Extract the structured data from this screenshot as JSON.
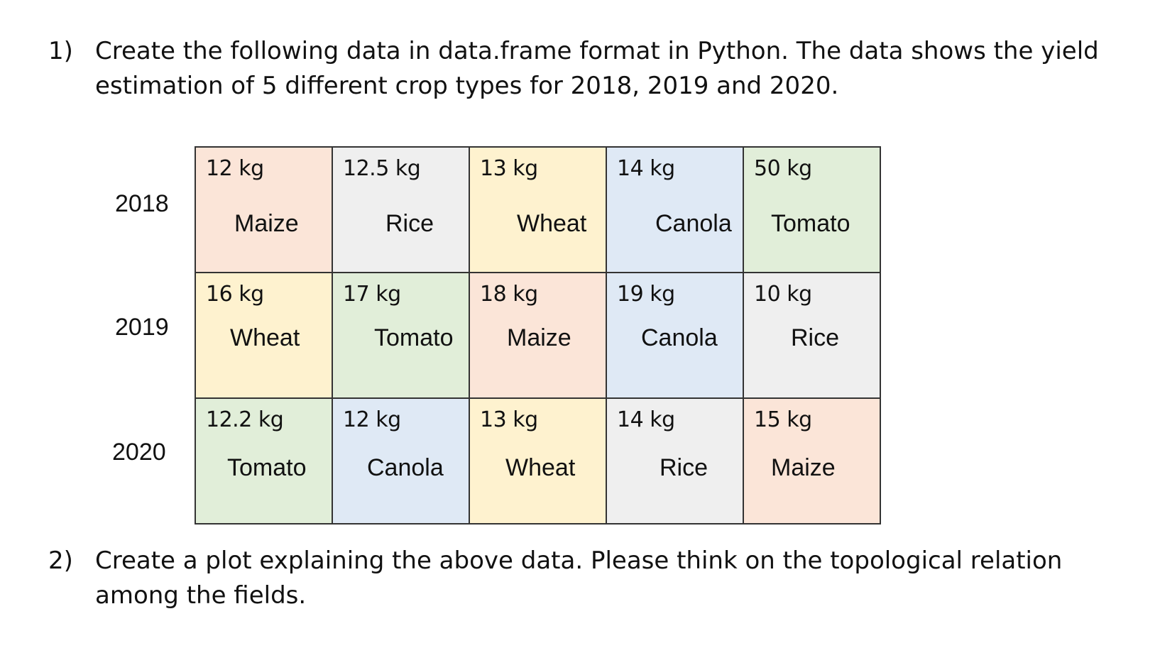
{
  "question1": {
    "number": "1)",
    "text": "Create the following data in data.frame format in Python. The data shows the yield estimation of 5 different crop types for 2018, 2019 and 2020."
  },
  "question2": {
    "number": "2)",
    "text": "Create a plot explaining the above data. Please think on the topological relation among the fields."
  },
  "years": [
    "2018",
    "2019",
    "2020"
  ],
  "grid": [
    [
      {
        "weight": "12 kg",
        "crop": "Maize"
      },
      {
        "weight": "12.5 kg",
        "crop": "Rice"
      },
      {
        "weight": "13 kg",
        "crop": "Wheat"
      },
      {
        "weight": "14 kg",
        "crop": "Canola"
      },
      {
        "weight": "50 kg",
        "crop": "Tomato"
      }
    ],
    [
      {
        "weight": "16 kg",
        "crop": "Wheat"
      },
      {
        "weight": "17 kg",
        "crop": "Tomato"
      },
      {
        "weight": "18 kg",
        "crop": "Maize"
      },
      {
        "weight": "19 kg",
        "crop": "Canola"
      },
      {
        "weight": "10 kg",
        "crop": "Rice"
      }
    ],
    [
      {
        "weight": "12.2 kg",
        "crop": "Tomato"
      },
      {
        "weight": "12 kg",
        "crop": "Canola"
      },
      {
        "weight": "13 kg",
        "crop": "Wheat"
      },
      {
        "weight": "14 kg",
        "crop": "Rice"
      },
      {
        "weight": "15 kg",
        "crop": "Maize"
      }
    ]
  ],
  "crop_colors": {
    "Maize": "#fbe5d8",
    "Rice": "#efefef",
    "Wheat": "#fef2cf",
    "Canola": "#dfe9f5",
    "Tomato": "#e1eed9"
  }
}
